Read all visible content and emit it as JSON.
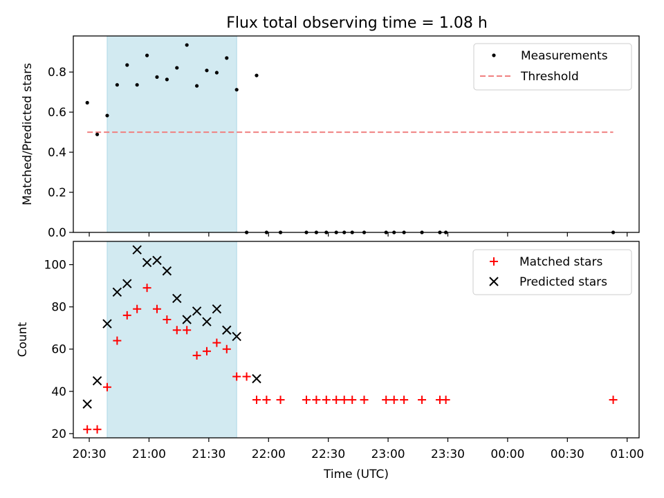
{
  "colors": {
    "shade": "#add8e6",
    "threshold": "#f08080",
    "matched": "#ff0000",
    "predicted": "#000000",
    "measurement": "#000000"
  },
  "chart_data": [
    {
      "type": "scatter",
      "title": "Flux total observing time = 1.08 h",
      "ylabel": "Matched/Predicted stars",
      "xlabel": "",
      "xlim": [
        "20:22",
        "01:06"
      ],
      "ylim": [
        0,
        0.98
      ],
      "yticks": [
        "0.0",
        "0.2",
        "0.4",
        "0.6",
        "0.8"
      ],
      "shaded_region": [
        "20:39",
        "21:44"
      ],
      "legend": {
        "position": "top-right",
        "entries": [
          "Measurements",
          "Threshold"
        ]
      },
      "threshold": {
        "name": "Threshold",
        "y": 0.5,
        "x": [
          "20:29",
          "00:53"
        ],
        "style": "dashed"
      },
      "series": [
        {
          "name": "Measurements",
          "marker": "dot",
          "points": [
            [
              "20:29",
              0.647
            ],
            [
              "20:34",
              0.489
            ],
            [
              "20:39",
              0.583
            ],
            [
              "20:44",
              0.736
            ],
            [
              "20:49",
              0.835
            ],
            [
              "20:54",
              0.736
            ],
            [
              "20:59",
              0.883
            ],
            [
              "21:04",
              0.775
            ],
            [
              "21:09",
              0.763
            ],
            [
              "21:14",
              0.821
            ],
            [
              "21:19",
              0.935
            ],
            [
              "21:24",
              0.731
            ],
            [
              "21:29",
              0.808
            ],
            [
              "21:34",
              0.797
            ],
            [
              "21:39",
              0.87
            ],
            [
              "21:44",
              0.712
            ],
            [
              "21:49",
              0.0
            ],
            [
              "21:54",
              0.783
            ],
            [
              "21:59",
              0.0
            ],
            [
              "22:06",
              0.0
            ],
            [
              "22:19",
              0.0
            ],
            [
              "22:24",
              0.0
            ],
            [
              "22:29",
              0.0
            ],
            [
              "22:34",
              0.0
            ],
            [
              "22:38",
              0.0
            ],
            [
              "22:42",
              0.0
            ],
            [
              "22:48",
              0.0
            ],
            [
              "22:59",
              0.0
            ],
            [
              "23:03",
              0.0
            ],
            [
              "23:08",
              0.0
            ],
            [
              "23:17",
              0.0
            ],
            [
              "23:26",
              0.0
            ],
            [
              "23:29",
              0.0
            ],
            [
              "00:53",
              0.0
            ]
          ]
        }
      ]
    },
    {
      "type": "scatter",
      "title": "",
      "ylabel": "Count",
      "xlabel": "Time (UTC)",
      "xlim": [
        "20:22",
        "01:06"
      ],
      "ylim": [
        18,
        111
      ],
      "yticks": [
        "20",
        "40",
        "60",
        "80",
        "100"
      ],
      "xticks": [
        "20:30",
        "21:00",
        "21:30",
        "22:00",
        "22:30",
        "23:00",
        "23:30",
        "00:00",
        "00:30",
        "01:00"
      ],
      "shaded_region": [
        "20:39",
        "21:44"
      ],
      "legend": {
        "position": "top-right",
        "entries": [
          "Matched stars",
          "Predicted stars"
        ]
      },
      "series": [
        {
          "name": "Matched stars",
          "marker": "plus",
          "points": [
            [
              "20:29",
              22
            ],
            [
              "20:34",
              22
            ],
            [
              "20:39",
              42
            ],
            [
              "20:44",
              64
            ],
            [
              "20:49",
              76
            ],
            [
              "20:54",
              79
            ],
            [
              "20:59",
              89
            ],
            [
              "21:04",
              79
            ],
            [
              "21:09",
              74
            ],
            [
              "21:14",
              69
            ],
            [
              "21:19",
              69
            ],
            [
              "21:24",
              57
            ],
            [
              "21:29",
              59
            ],
            [
              "21:34",
              63
            ],
            [
              "21:39",
              60
            ],
            [
              "21:44",
              47
            ],
            [
              "21:49",
              47
            ],
            [
              "21:54",
              36
            ],
            [
              "21:59",
              36
            ],
            [
              "22:06",
              36
            ],
            [
              "22:19",
              36
            ],
            [
              "22:24",
              36
            ],
            [
              "22:29",
              36
            ],
            [
              "22:34",
              36
            ],
            [
              "22:38",
              36
            ],
            [
              "22:42",
              36
            ],
            [
              "22:48",
              36
            ],
            [
              "22:59",
              36
            ],
            [
              "23:03",
              36
            ],
            [
              "23:08",
              36
            ],
            [
              "23:17",
              36
            ],
            [
              "23:26",
              36
            ],
            [
              "23:29",
              36
            ],
            [
              "00:53",
              36
            ]
          ]
        },
        {
          "name": "Predicted stars",
          "marker": "x",
          "points": [
            [
              "20:29",
              34
            ],
            [
              "20:34",
              45
            ],
            [
              "20:39",
              72
            ],
            [
              "20:44",
              87
            ],
            [
              "20:49",
              91
            ],
            [
              "20:54",
              107
            ],
            [
              "20:59",
              101
            ],
            [
              "21:04",
              102
            ],
            [
              "21:09",
              97
            ],
            [
              "21:14",
              84
            ],
            [
              "21:19",
              74
            ],
            [
              "21:24",
              78
            ],
            [
              "21:29",
              73
            ],
            [
              "21:34",
              79
            ],
            [
              "21:39",
              69
            ],
            [
              "21:44",
              66
            ],
            [
              "21:54",
              46
            ]
          ]
        }
      ]
    }
  ]
}
